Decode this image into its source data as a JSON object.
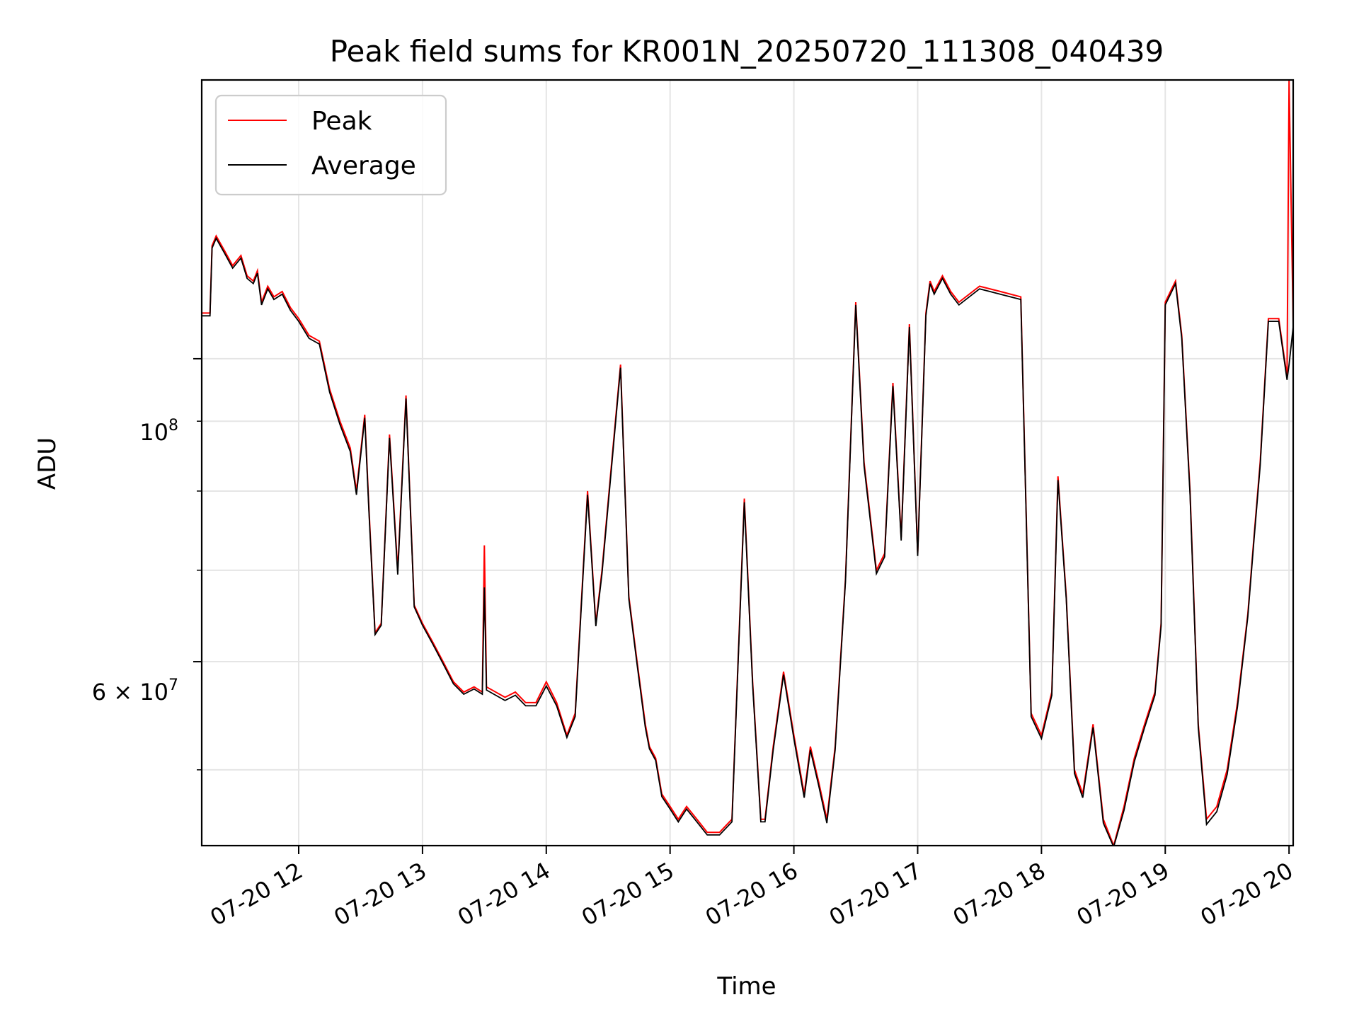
{
  "chart_data": {
    "type": "line",
    "title": "Peak field sums for KR001N_20250720_111308_040439",
    "xlabel": "Time",
    "ylabel": "ADU",
    "x_tick_labels": [
      "07-20 12",
      "07-20 13",
      "07-20 14",
      "07-20 15",
      "07-20 16",
      "07-20 17",
      "07-20 18",
      "07-20 19",
      "07-20 20"
    ],
    "y_tick_labels": [
      "10^8",
      "6×10^7"
    ],
    "y_scale": "log",
    "xlim": [
      "2025-07-20 11:13",
      "2025-07-20 20:02"
    ],
    "ylim": [
      44000000,
      160000000
    ],
    "grid": true,
    "legend_position": "upper-left",
    "colors": {
      "peak": "#ff0000",
      "average": "#000000",
      "grid": "#e5e5e5"
    },
    "series": [
      {
        "name": "Peak",
        "x": [
          "11:13",
          "11:17",
          "11:18",
          "11:20",
          "11:24",
          "11:28",
          "11:32",
          "11:35",
          "11:38",
          "11:40",
          "11:42",
          "11:45",
          "11:48",
          "11:52",
          "11:56",
          "12:00",
          "12:05",
          "12:10",
          "12:15",
          "12:20",
          "12:25",
          "12:28",
          "12:32",
          "12:34",
          "12:37",
          "12:40",
          "12:44",
          "12:48",
          "12:52",
          "12:56",
          "13:00",
          "13:05",
          "13:10",
          "13:15",
          "13:20",
          "13:25",
          "13:29",
          "13:30",
          "13:31",
          "13:40",
          "13:45",
          "13:50",
          "13:55",
          "14:00",
          "14:05",
          "14:10",
          "14:14",
          "14:20",
          "14:24",
          "14:27",
          "14:32",
          "14:36",
          "14:40",
          "14:44",
          "14:48",
          "14:50",
          "14:53",
          "14:56",
          "15:00",
          "15:04",
          "15:08",
          "15:13",
          "15:18",
          "15:24",
          "15:30",
          "15:36",
          "15:40",
          "15:44",
          "15:46",
          "15:50",
          "15:55",
          "16:00",
          "16:05",
          "16:08",
          "16:12",
          "16:16",
          "16:20",
          "16:25",
          "16:30",
          "16:34",
          "16:40",
          "16:44",
          "16:48",
          "16:52",
          "16:56",
          "17:00",
          "17:04",
          "17:06",
          "17:08",
          "17:12",
          "17:16",
          "17:20",
          "17:30",
          "17:40",
          "17:50",
          "17:55",
          "18:00",
          "18:05",
          "18:08",
          "18:12",
          "18:16",
          "18:20",
          "18:25",
          "18:30",
          "18:35",
          "18:40",
          "18:45",
          "18:50",
          "18:55",
          "18:58",
          "19:00",
          "19:05",
          "19:08",
          "19:12",
          "19:16",
          "19:20",
          "19:25",
          "19:30",
          "19:35",
          "19:40",
          "19:43",
          "19:46",
          "19:50",
          "19:55",
          "19:59",
          "20:00",
          "20:02"
        ],
        "y": [
          108000000,
          108000000,
          121000000,
          123000000,
          120000000,
          117000000,
          119000000,
          115000000,
          114000000,
          116000000,
          110000000,
          113000000,
          111000000,
          112000000,
          109000000,
          107000000,
          104000000,
          103000000,
          95000000,
          90000000,
          86000000,
          80000000,
          91000000,
          78000000,
          63000000,
          64000000,
          88000000,
          70000000,
          94000000,
          66000000,
          64000000,
          62000000,
          60000000,
          58000000,
          57000000,
          57500000,
          57000000,
          73000000,
          57500000,
          56500000,
          57000000,
          56000000,
          56000000,
          58000000,
          56000000,
          53000000,
          55000000,
          80000000,
          64000000,
          70000000,
          85000000,
          99000000,
          67000000,
          60000000,
          54000000,
          52000000,
          51000000,
          48000000,
          47000000,
          46000000,
          47000000,
          46000000,
          45000000,
          45000000,
          46000000,
          79000000,
          58000000,
          46000000,
          46000000,
          52000000,
          59000000,
          53000000,
          48000000,
          52000000,
          49000000,
          46000000,
          52000000,
          69000000,
          110000000,
          84000000,
          70000000,
          72000000,
          96000000,
          74000000,
          106000000,
          72000000,
          108000000,
          114000000,
          112000000,
          115000000,
          112000000,
          110000000,
          113000000,
          112000000,
          111000000,
          55000000,
          53000000,
          57000000,
          82000000,
          67000000,
          50000000,
          48000000,
          54000000,
          46000000,
          44000000,
          47000000,
          51000000,
          54000000,
          57000000,
          64000000,
          110000000,
          114000000,
          104000000,
          80000000,
          54000000,
          46000000,
          47000000,
          50000000,
          56000000,
          65000000,
          74000000,
          84000000,
          107000000,
          107000000,
          97000000,
          160000000,
          106000000
        ],
        "color": "#ff0000"
      },
      {
        "name": "Average",
        "x": [
          "11:13",
          "11:17",
          "11:18",
          "11:20",
          "11:24",
          "11:28",
          "11:32",
          "11:35",
          "11:38",
          "11:40",
          "11:42",
          "11:45",
          "11:48",
          "11:52",
          "11:56",
          "12:00",
          "12:05",
          "12:10",
          "12:15",
          "12:20",
          "12:25",
          "12:28",
          "12:32",
          "12:34",
          "12:37",
          "12:40",
          "12:44",
          "12:48",
          "12:52",
          "12:56",
          "13:00",
          "13:05",
          "13:10",
          "13:15",
          "13:20",
          "13:25",
          "13:29",
          "13:30",
          "13:31",
          "13:40",
          "13:45",
          "13:50",
          "13:55",
          "14:00",
          "14:05",
          "14:10",
          "14:14",
          "14:20",
          "14:24",
          "14:27",
          "14:32",
          "14:36",
          "14:40",
          "14:44",
          "14:48",
          "14:50",
          "14:53",
          "14:56",
          "15:00",
          "15:04",
          "15:08",
          "15:13",
          "15:18",
          "15:24",
          "15:30",
          "15:36",
          "15:40",
          "15:44",
          "15:46",
          "15:50",
          "15:55",
          "16:00",
          "16:05",
          "16:08",
          "16:12",
          "16:16",
          "16:20",
          "16:25",
          "16:30",
          "16:34",
          "16:40",
          "16:44",
          "16:48",
          "16:52",
          "16:56",
          "17:00",
          "17:04",
          "17:06",
          "17:08",
          "17:12",
          "17:16",
          "17:20",
          "17:30",
          "17:40",
          "17:50",
          "17:55",
          "18:00",
          "18:05",
          "18:08",
          "18:12",
          "18:16",
          "18:20",
          "18:25",
          "18:30",
          "18:35",
          "18:40",
          "18:45",
          "18:50",
          "18:55",
          "18:58",
          "19:00",
          "19:05",
          "19:08",
          "19:12",
          "19:16",
          "19:20",
          "19:25",
          "19:30",
          "19:35",
          "19:40",
          "19:43",
          "19:46",
          "19:50",
          "19:55",
          "19:59",
          "20:00",
          "20:02"
        ],
        "y": [
          107500000,
          107500000,
          120500000,
          122500000,
          119500000,
          116500000,
          118500000,
          114500000,
          113500000,
          115500000,
          109500000,
          112500000,
          110500000,
          111500000,
          108500000,
          106500000,
          103500000,
          102500000,
          94500000,
          89500000,
          85500000,
          79500000,
          90500000,
          77500000,
          62800000,
          63800000,
          87500000,
          69500000,
          93500000,
          65800000,
          63800000,
          61800000,
          59800000,
          57800000,
          56800000,
          57300000,
          56800000,
          68000000,
          57200000,
          56200000,
          56700000,
          55700000,
          55700000,
          57600000,
          55700000,
          52800000,
          54700000,
          79500000,
          63700000,
          69600000,
          84500000,
          98500000,
          66700000,
          59700000,
          53700000,
          51800000,
          50800000,
          47800000,
          46800000,
          45800000,
          46800000,
          45800000,
          44800000,
          44800000,
          45800000,
          78500000,
          57700000,
          45800000,
          45800000,
          51700000,
          58700000,
          52700000,
          47700000,
          51700000,
          48700000,
          45700000,
          51700000,
          68700000,
          109500000,
          83500000,
          69600000,
          71600000,
          95500000,
          73600000,
          105500000,
          71700000,
          107500000,
          113500000,
          111500000,
          114500000,
          111500000,
          109500000,
          112500000,
          111500000,
          110500000,
          54700000,
          52700000,
          56700000,
          81500000,
          66700000,
          49700000,
          47700000,
          53700000,
          45700000,
          43900000,
          46700000,
          50700000,
          53700000,
          56700000,
          63700000,
          109500000,
          113500000,
          103500000,
          79500000,
          53700000,
          45600000,
          46600000,
          49600000,
          55600000,
          64700000,
          73600000,
          83500000,
          106500000,
          106500000,
          96500000,
          99000000,
          105500000
        ],
        "color": "#000000"
      }
    ]
  }
}
